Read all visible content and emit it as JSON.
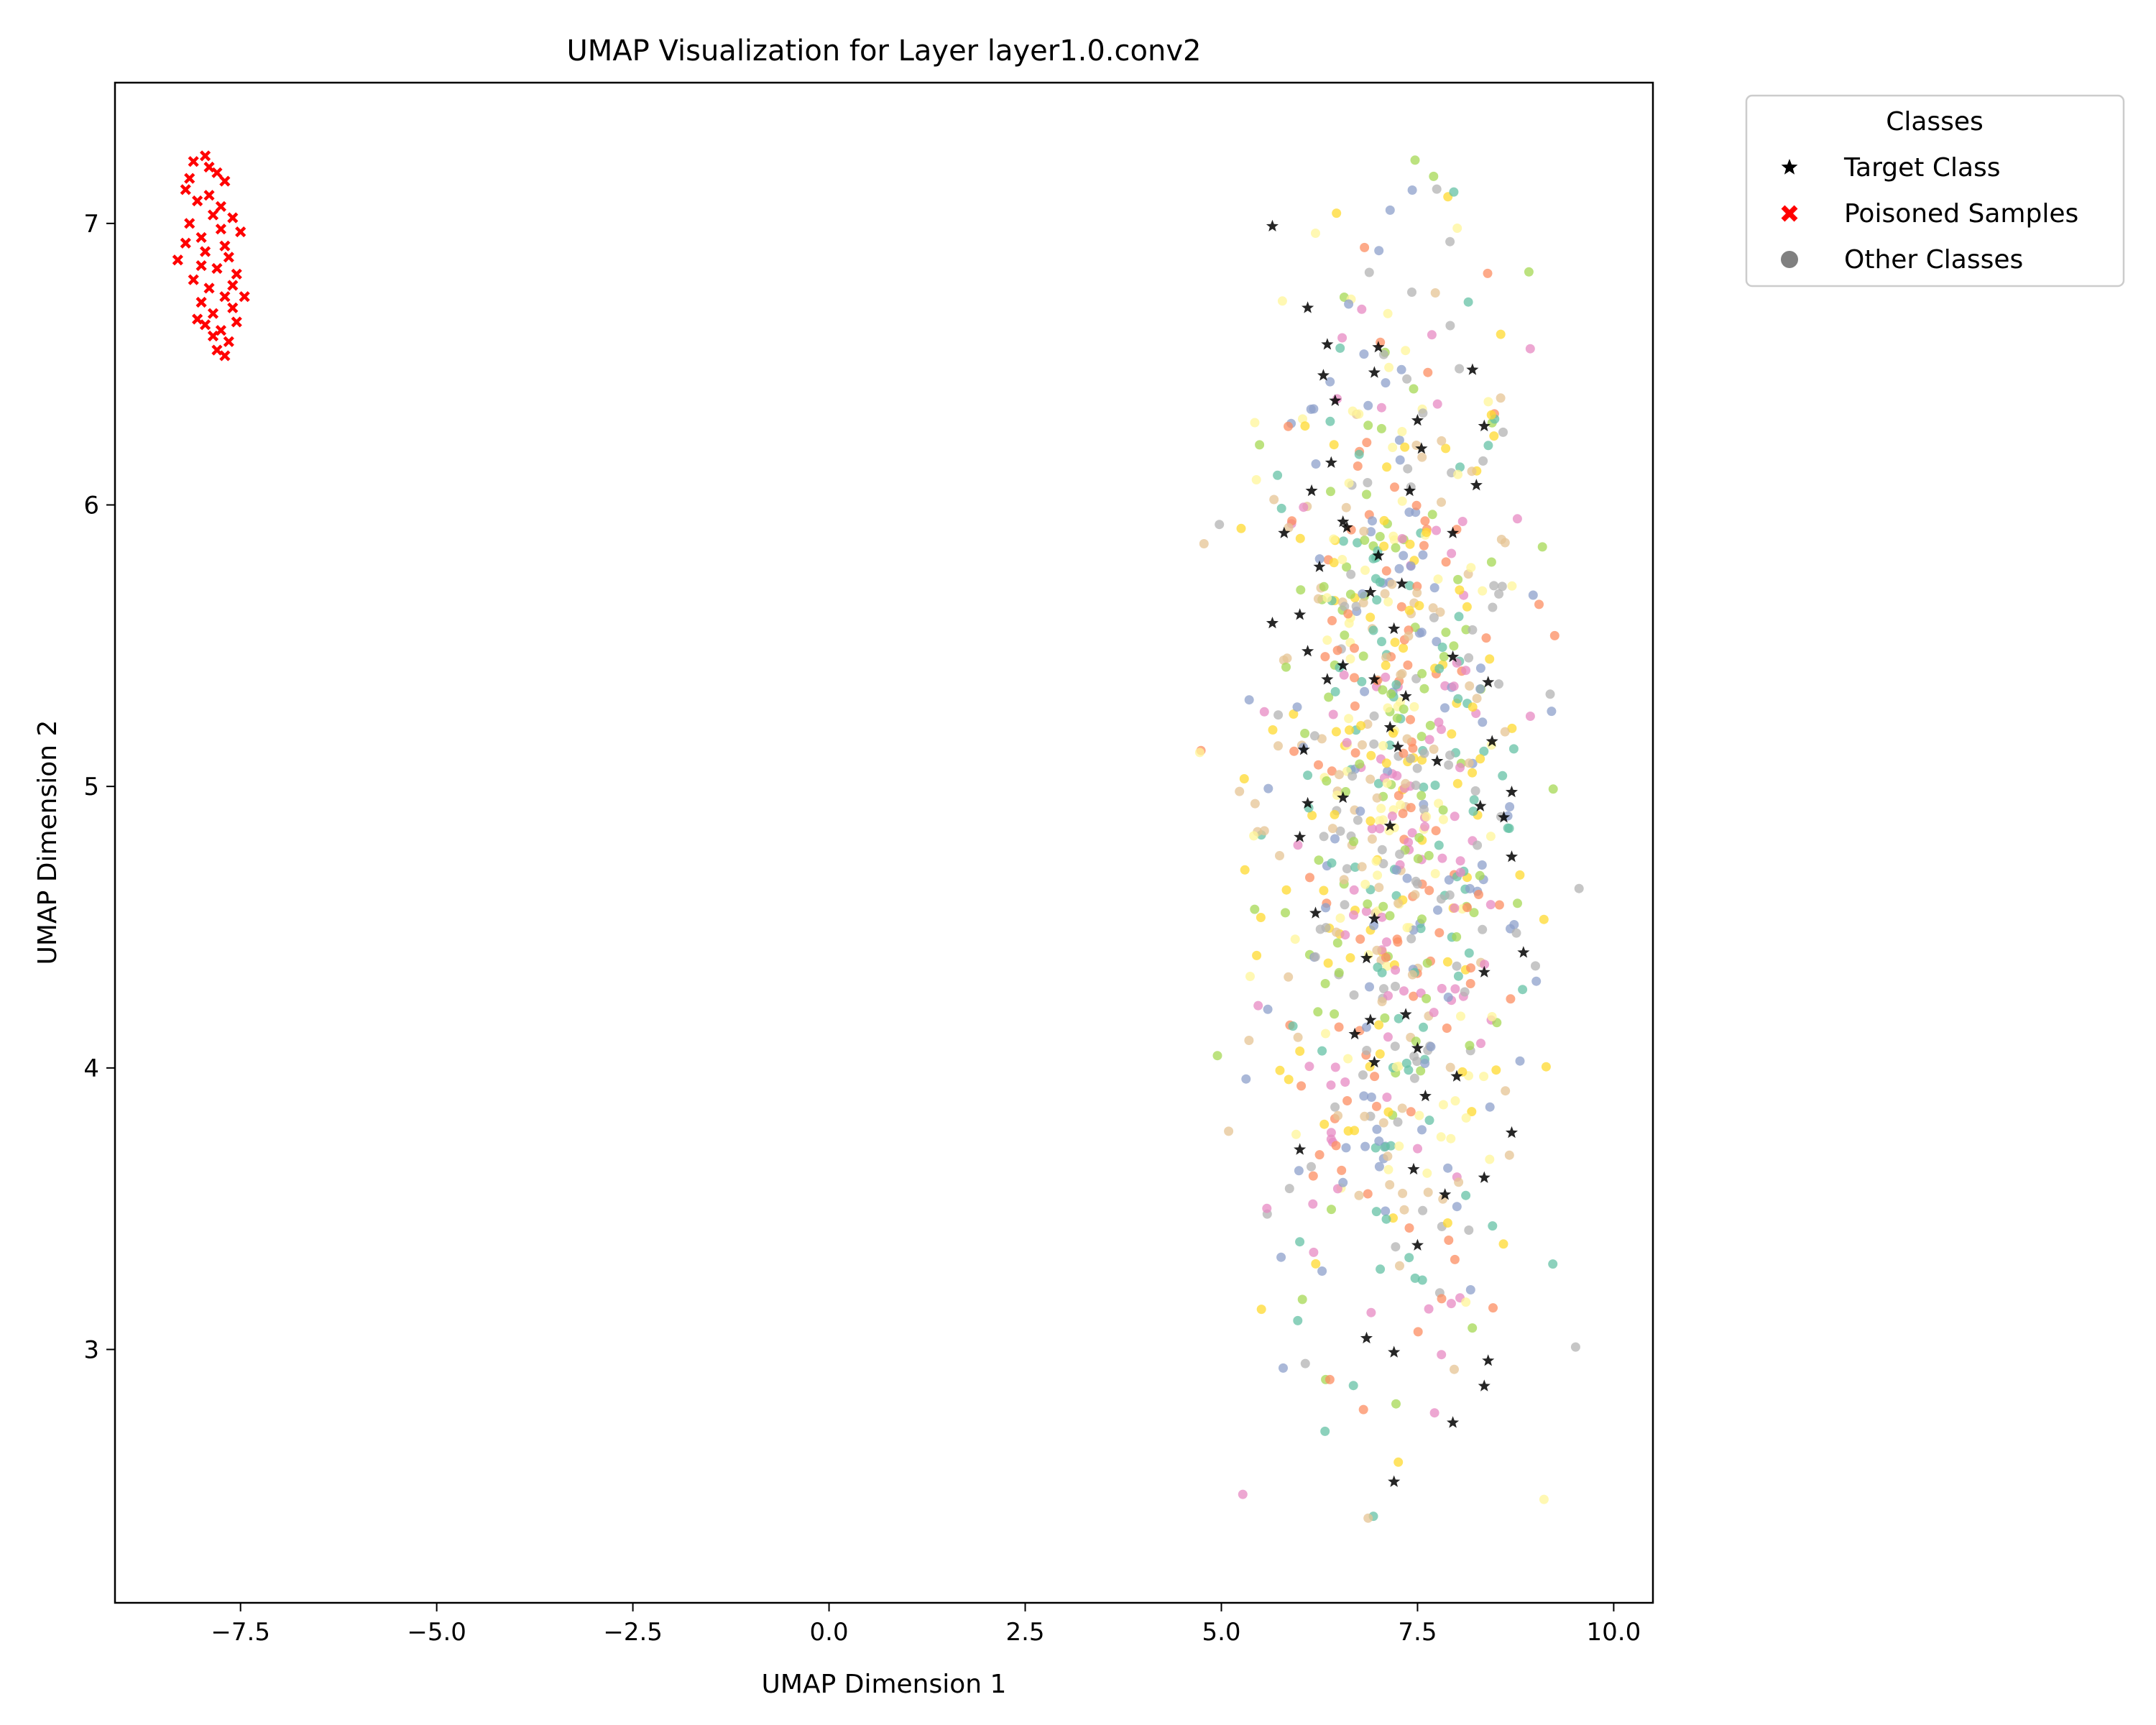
{
  "chart_data": {
    "type": "scatter",
    "title": "UMAP Visualization for Layer layer1.0.conv2",
    "xlabel": "UMAP Dimension 1",
    "ylabel": "UMAP Dimension 2",
    "xlim": [
      -9.1,
      10.5
    ],
    "ylim": [
      2.1,
      7.5
    ],
    "xticks": [
      -7.5,
      -5.0,
      -2.5,
      0.0,
      2.5,
      5.0,
      7.5,
      10.0
    ],
    "xtick_labels": [
      "−7.5",
      "−5.0",
      "−2.5",
      "0.0",
      "2.5",
      "5.0",
      "7.5",
      "10.0"
    ],
    "yticks": [
      3,
      4,
      5,
      6,
      7
    ],
    "ytick_labels": [
      "3",
      "4",
      "5",
      "6",
      "7"
    ],
    "grid": false,
    "legend": {
      "title": "Classes",
      "placement": "outside-top-right",
      "entries": [
        {
          "label": "Target Class",
          "marker": "star",
          "color": "#000000"
        },
        {
          "label": "Poisoned Samples",
          "marker": "x",
          "color": "#ff0000"
        },
        {
          "label": "Other Classes",
          "marker": "circle",
          "color": "#808080"
        }
      ]
    },
    "series": [
      {
        "name": "Poisoned Samples",
        "marker": "x",
        "color": "#ff0000",
        "points": [
          [
            -8.1,
            7.22
          ],
          [
            -7.95,
            7.24
          ],
          [
            -7.8,
            7.18
          ],
          [
            -8.2,
            7.12
          ],
          [
            -7.7,
            7.15
          ],
          [
            -8.05,
            7.08
          ],
          [
            -7.9,
            7.1
          ],
          [
            -7.85,
            7.03
          ],
          [
            -8.15,
            7.0
          ],
          [
            -7.6,
            7.02
          ],
          [
            -7.75,
            6.98
          ],
          [
            -8.0,
            6.95
          ],
          [
            -7.5,
            6.97
          ],
          [
            -7.95,
            6.9
          ],
          [
            -8.3,
            6.87
          ],
          [
            -7.65,
            6.88
          ],
          [
            -7.8,
            6.84
          ],
          [
            -8.1,
            6.8
          ],
          [
            -7.55,
            6.82
          ],
          [
            -7.9,
            6.77
          ],
          [
            -7.7,
            6.74
          ],
          [
            -8.0,
            6.72
          ],
          [
            -7.45,
            6.74
          ],
          [
            -7.85,
            6.68
          ],
          [
            -7.6,
            6.7
          ],
          [
            -7.95,
            6.64
          ],
          [
            -7.75,
            6.62
          ],
          [
            -7.65,
            6.58
          ],
          [
            -7.8,
            6.55
          ],
          [
            -7.7,
            6.53
          ],
          [
            -8.05,
            6.66
          ],
          [
            -7.55,
            6.65
          ],
          [
            -8.15,
            7.16
          ],
          [
            -7.9,
            7.2
          ],
          [
            -8.0,
            6.85
          ],
          [
            -7.7,
            6.92
          ],
          [
            -7.85,
            6.6
          ],
          [
            -7.6,
            6.78
          ],
          [
            -8.2,
            6.93
          ],
          [
            -7.75,
            7.06
          ]
        ]
      },
      {
        "name": "Target Class",
        "marker": "star",
        "color": "#000000",
        "points": [
          [
            5.65,
            6.99
          ],
          [
            6.1,
            6.7
          ],
          [
            6.35,
            6.57
          ],
          [
            7.0,
            6.56
          ],
          [
            6.3,
            6.46
          ],
          [
            6.95,
            6.47
          ],
          [
            8.2,
            6.48
          ],
          [
            6.45,
            6.37
          ],
          [
            7.5,
            6.3
          ],
          [
            8.35,
            6.28
          ],
          [
            6.4,
            6.15
          ],
          [
            7.55,
            6.2
          ],
          [
            6.15,
            6.05
          ],
          [
            8.25,
            6.07
          ],
          [
            7.4,
            6.05
          ],
          [
            5.8,
            5.9
          ],
          [
            6.55,
            5.94
          ],
          [
            7.95,
            5.9
          ],
          [
            6.25,
            5.78
          ],
          [
            7.0,
            5.82
          ],
          [
            7.3,
            5.72
          ],
          [
            6.9,
            5.69
          ],
          [
            6.0,
            5.61
          ],
          [
            5.65,
            5.58
          ],
          [
            7.2,
            5.56
          ],
          [
            6.1,
            5.48
          ],
          [
            7.95,
            5.46
          ],
          [
            6.55,
            5.43
          ],
          [
            6.95,
            5.38
          ],
          [
            6.35,
            5.38
          ],
          [
            8.4,
            5.37
          ],
          [
            7.35,
            5.32
          ],
          [
            7.15,
            5.21
          ],
          [
            8.45,
            5.16
          ],
          [
            6.05,
            5.13
          ],
          [
            7.25,
            5.14
          ],
          [
            7.75,
            5.09
          ],
          [
            6.55,
            4.96
          ],
          [
            8.7,
            4.98
          ],
          [
            6.1,
            4.94
          ],
          [
            8.3,
            4.93
          ],
          [
            8.6,
            4.89
          ],
          [
            7.15,
            4.86
          ],
          [
            6.0,
            4.82
          ],
          [
            8.7,
            4.75
          ],
          [
            6.2,
            4.55
          ],
          [
            6.95,
            4.53
          ],
          [
            8.85,
            4.41
          ],
          [
            6.85,
            4.39
          ],
          [
            8.35,
            4.34
          ],
          [
            7.35,
            4.19
          ],
          [
            6.9,
            4.17
          ],
          [
            6.7,
            4.12
          ],
          [
            7.5,
            4.07
          ],
          [
            6.95,
            4.02
          ],
          [
            8.0,
            3.97
          ],
          [
            7.6,
            3.9
          ],
          [
            8.7,
            3.77
          ],
          [
            6.0,
            3.71
          ],
          [
            7.45,
            3.64
          ],
          [
            8.35,
            3.61
          ],
          [
            7.85,
            3.55
          ],
          [
            7.5,
            3.37
          ],
          [
            6.85,
            3.04
          ],
          [
            7.2,
            2.99
          ],
          [
            8.4,
            2.96
          ],
          [
            8.35,
            2.87
          ],
          [
            7.95,
            2.74
          ],
          [
            7.2,
            2.53
          ],
          [
            6.6,
            5.92
          ]
        ]
      }
    ]
  }
}
